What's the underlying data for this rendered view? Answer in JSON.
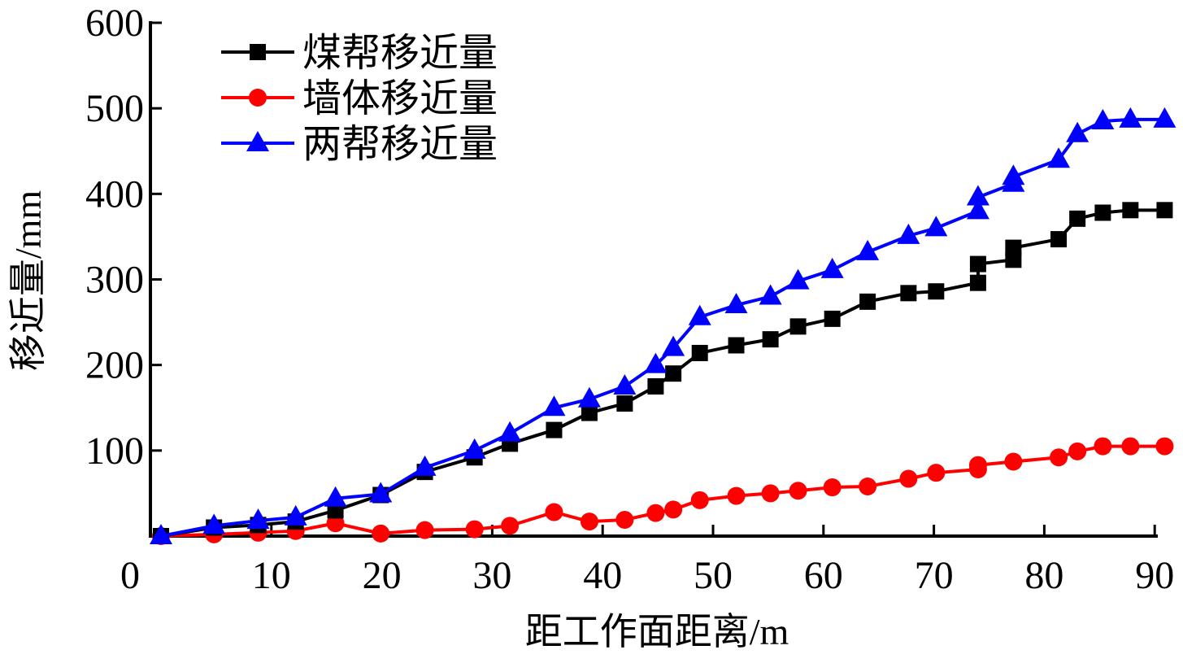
{
  "chart_data": {
    "type": "line",
    "title": "",
    "xlabel": "距工作面距离/m",
    "ylabel": "移近量/mm",
    "xlim": [
      -1,
      91
    ],
    "ylim": [
      0,
      600
    ],
    "xticks": [
      0,
      10,
      20,
      30,
      40,
      50,
      60,
      70,
      80,
      90
    ],
    "yticks": [
      100,
      200,
      300,
      400,
      500,
      600
    ],
    "grid": false,
    "legend_position": "top-left",
    "series": [
      {
        "name": "煤帮移近量",
        "color": "#000000",
        "marker": "square",
        "x": [
          0,
          4.8,
          8.8,
          12.2,
          15.8,
          19.9,
          23.9,
          28.4,
          31.6,
          35.6,
          38.8,
          42.0,
          44.8,
          46.4,
          48.8,
          52.1,
          55.2,
          57.7,
          60.8,
          64.0,
          67.7,
          70.2,
          74.0,
          74.0,
          77.2,
          77.2,
          81.3,
          83.0,
          85.3,
          87.8,
          90.9
        ],
        "y": [
          0,
          10,
          13,
          17,
          30,
          48,
          75,
          92,
          108,
          124,
          144,
          155,
          175,
          190,
          214,
          223,
          230,
          245,
          254,
          274,
          284,
          286,
          296,
          318,
          323,
          337,
          347,
          371,
          378,
          381,
          381
        ]
      },
      {
        "name": "墙体移近量",
        "color": "#ff0000",
        "marker": "circle",
        "x": [
          0,
          4.8,
          8.8,
          12.2,
          15.8,
          19.9,
          23.9,
          28.4,
          31.6,
          35.6,
          38.8,
          42.0,
          44.8,
          46.4,
          48.8,
          52.1,
          55.2,
          57.7,
          60.8,
          64.0,
          67.7,
          70.2,
          74.0,
          74.0,
          77.2,
          81.3,
          83.0,
          85.3,
          87.8,
          90.9
        ],
        "y": [
          0,
          2,
          4,
          6,
          15,
          3,
          7,
          8,
          12,
          28,
          17,
          19,
          27,
          31,
          42,
          47,
          50,
          53,
          57,
          58,
          67,
          74,
          78,
          83,
          87,
          92,
          99,
          105,
          105,
          105
        ]
      },
      {
        "name": "两帮移近量",
        "color": "#0000ff",
        "marker": "triangle",
        "x": [
          0,
          4.8,
          8.8,
          12.2,
          15.8,
          19.9,
          23.9,
          28.4,
          31.6,
          35.6,
          38.8,
          42.0,
          44.8,
          46.4,
          48.8,
          52.1,
          55.2,
          57.7,
          60.8,
          64.0,
          67.7,
          70.2,
          74.0,
          74.0,
          77.2,
          77.2,
          81.3,
          83.0,
          85.3,
          87.8,
          90.9
        ],
        "y": [
          0,
          12,
          18,
          22,
          44,
          49,
          80,
          100,
          120,
          150,
          160,
          175,
          200,
          220,
          256,
          270,
          280,
          298,
          311,
          332,
          351,
          360,
          380,
          396,
          412,
          420,
          440,
          470,
          485,
          487,
          487
        ]
      }
    ]
  }
}
